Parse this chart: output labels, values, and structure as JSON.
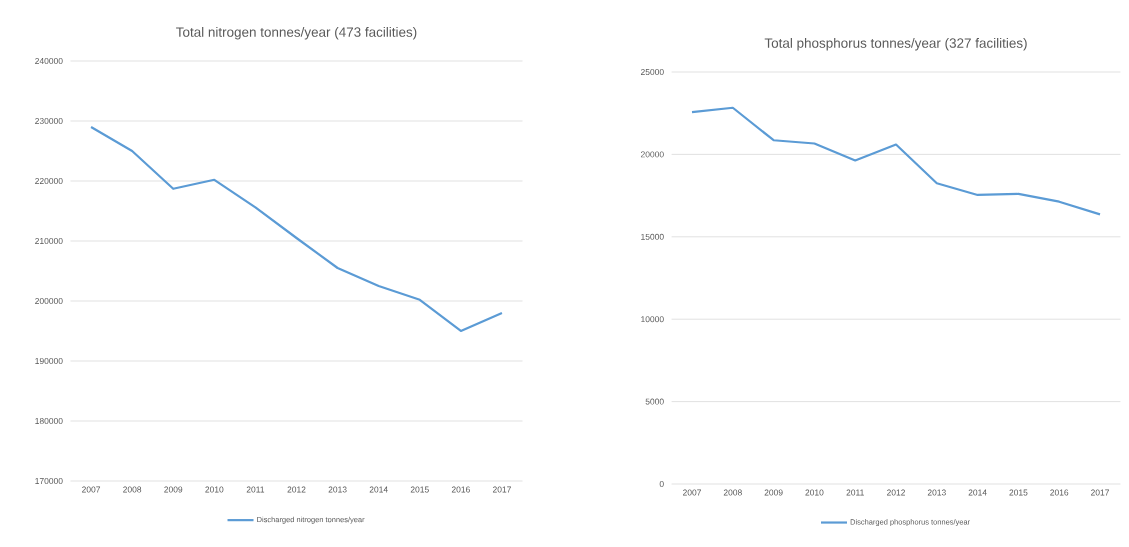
{
  "chart_data": [
    {
      "type": "line",
      "title": "Total nitrogen tonnes/year (473 facilities)",
      "categories": [
        "2007",
        "2008",
        "2009",
        "2010",
        "2011",
        "2012",
        "2013",
        "2014",
        "2015",
        "2016",
        "2017"
      ],
      "series": [
        {
          "name": "Discharged nitrogen tonnes/year",
          "color": "#5b9bd5",
          "values": [
            229000,
            225000,
            218700,
            220200,
            215600,
            210500,
            205500,
            202500,
            200200,
            195000,
            198000
          ]
        }
      ],
      "ylim": [
        170000,
        240000
      ],
      "yticks": [
        170000,
        180000,
        190000,
        200000,
        210000,
        220000,
        230000,
        240000
      ],
      "grid": "y",
      "legend": "bottom"
    },
    {
      "type": "line",
      "title": "Total phosphorus tonnes/year (327 facilities)",
      "categories": [
        "2007",
        "2008",
        "2009",
        "2010",
        "2011",
        "2012",
        "2013",
        "2014",
        "2015",
        "2016",
        "2017"
      ],
      "series": [
        {
          "name": "Discharged phosphorus tonnes/year",
          "color": "#5b9bd5",
          "values": [
            22570,
            22830,
            20860,
            20660,
            19630,
            20600,
            18250,
            17540,
            17600,
            17130,
            16360
          ]
        }
      ],
      "ylim": [
        0,
        25000
      ],
      "yticks": [
        0,
        5000,
        10000,
        15000,
        20000,
        25000
      ],
      "grid": "y",
      "legend": "bottom"
    }
  ]
}
